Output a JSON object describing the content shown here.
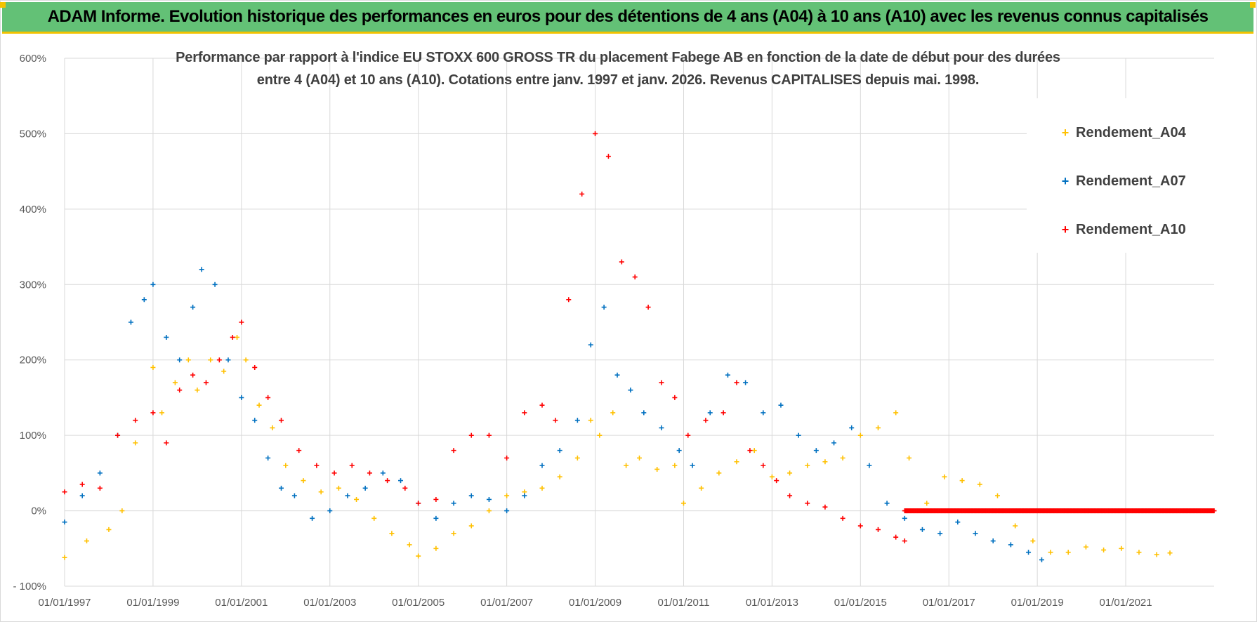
{
  "header": {
    "title": "ADAM Informe. Evolution historique des performances en euros pour des détentions de 4 ans (A04) à 10 ans (A10) avec les revenus connus capitalisés"
  },
  "colors": {
    "header_bg": "#63c176",
    "header_accent": "#f2c200",
    "A04": "#ffc000",
    "A07": "#0070c0",
    "A10": "#ff0000",
    "grid": "#d9d9d9",
    "axis_text": "#595959"
  },
  "chart_data": {
    "type": "scatter",
    "title_line1": "Performance par rapport à l'indice EU STOXX 600 GROSS TR  du placement Fabege AB en fonction de la date de début pour des durées",
    "title_line2": "entre 4 (A04) et 10 ans (A10).  Cotations entre janv. 1997 et janv. 2026. Revenus CAPITALISES depuis mai. 1998.",
    "xlabel": "",
    "ylabel": "",
    "xlim": [
      1997.0,
      2023.0
    ],
    "ylim": [
      -100,
      600
    ],
    "x_ticks": [
      1997,
      1999,
      2001,
      2003,
      2005,
      2007,
      2009,
      2011,
      2013,
      2015,
      2017,
      2019,
      2021
    ],
    "x_tick_labels": [
      "01/01/1997",
      "01/01/1999",
      "01/01/2001",
      "01/01/2003",
      "01/01/2005",
      "01/01/2007",
      "01/01/2009",
      "01/01/2011",
      "01/01/2013",
      "01/01/2015",
      "01/01/2017",
      "01/01/2019",
      "01/01/2021"
    ],
    "y_ticks": [
      -100,
      0,
      100,
      200,
      300,
      400,
      500,
      600
    ],
    "y_tick_labels": [
      "- 100%",
      "0%",
      "100%",
      "200%",
      "300%",
      "400%",
      "500%",
      "600%"
    ],
    "legend": [
      "Rendement_A04",
      "Rendement_A07",
      "Rendement_A10"
    ],
    "legend_position": "top-right",
    "series": [
      {
        "name": "Rendement_A04",
        "x": [
          1997.0,
          1997.5,
          1998.0,
          1998.3,
          1998.6,
          1999.0,
          1999.2,
          1999.5,
          1999.8,
          2000.0,
          2000.3,
          2000.6,
          2000.9,
          2001.1,
          2001.4,
          2001.7,
          2002.0,
          2002.4,
          2002.8,
          2003.2,
          2003.6,
          2004.0,
          2004.4,
          2004.8,
          2005.0,
          2005.4,
          2005.8,
          2006.2,
          2006.6,
          2007.0,
          2007.4,
          2007.8,
          2008.2,
          2008.6,
          2008.9,
          2009.1,
          2009.4,
          2009.7,
          2010.0,
          2010.4,
          2010.8,
          2011.0,
          2011.4,
          2011.8,
          2012.2,
          2012.6,
          2013.0,
          2013.4,
          2013.8,
          2014.2,
          2014.6,
          2015.0,
          2015.4,
          2015.8,
          2016.1,
          2016.5,
          2016.9,
          2017.3,
          2017.7,
          2018.1,
          2018.5,
          2018.9,
          2019.3,
          2019.7,
          2020.1,
          2020.5,
          2020.9,
          2021.3,
          2021.7,
          2022.0
        ],
        "values": [
          -62,
          -40,
          -25,
          0,
          90,
          190,
          130,
          170,
          200,
          160,
          200,
          185,
          230,
          200,
          140,
          110,
          60,
          40,
          25,
          30,
          15,
          -10,
          -30,
          -45,
          -60,
          -50,
          -30,
          -20,
          0,
          20,
          25,
          30,
          45,
          70,
          120,
          100,
          130,
          60,
          70,
          55,
          60,
          10,
          30,
          50,
          65,
          80,
          45,
          50,
          60,
          65,
          70,
          100,
          110,
          130,
          70,
          10,
          45,
          40,
          35,
          20,
          -20,
          -40,
          -55,
          -55,
          -48,
          -52,
          -50,
          -55,
          -58,
          -56
        ]
      },
      {
        "name": "Rendement_A07",
        "x": [
          1997.0,
          1997.4,
          1997.8,
          1998.2,
          1998.5,
          1998.8,
          1999.0,
          1999.3,
          1999.6,
          1999.9,
          2000.1,
          2000.4,
          2000.7,
          2001.0,
          2001.3,
          2001.6,
          2001.9,
          2002.2,
          2002.6,
          2003.0,
          2003.4,
          2003.8,
          2004.2,
          2004.6,
          2005.0,
          2005.4,
          2005.8,
          2006.2,
          2006.6,
          2007.0,
          2007.4,
          2007.8,
          2008.2,
          2008.6,
          2008.9,
          2009.2,
          2009.5,
          2009.8,
          2010.1,
          2010.5,
          2010.9,
          2011.2,
          2011.6,
          2012.0,
          2012.4,
          2012.8,
          2013.2,
          2013.6,
          2014.0,
          2014.4,
          2014.8,
          2015.2,
          2015.6,
          2016.0,
          2016.4,
          2016.8,
          2017.2,
          2017.6,
          2018.0,
          2018.4,
          2018.8,
          2019.1
        ],
        "values": [
          -15,
          20,
          50,
          100,
          250,
          280,
          300,
          230,
          200,
          270,
          320,
          300,
          200,
          150,
          120,
          70,
          30,
          20,
          -10,
          0,
          20,
          30,
          50,
          40,
          10,
          -10,
          10,
          20,
          15,
          0,
          20,
          60,
          80,
          120,
          220,
          270,
          180,
          160,
          130,
          110,
          80,
          60,
          130,
          180,
          170,
          130,
          140,
          100,
          80,
          90,
          110,
          60,
          10,
          -10,
          -25,
          -30,
          -15,
          -30,
          -40,
          -45,
          -55,
          -65
        ]
      },
      {
        "name": "Rendement_A10",
        "x": [
          1997.0,
          1997.4,
          1997.8,
          1998.2,
          1998.6,
          1999.0,
          1999.3,
          1999.6,
          1999.9,
          2000.2,
          2000.5,
          2000.8,
          2001.0,
          2001.3,
          2001.6,
          2001.9,
          2002.3,
          2002.7,
          2003.1,
          2003.5,
          2003.9,
          2004.3,
          2004.7,
          2005.0,
          2005.4,
          2005.8,
          2006.2,
          2006.6,
          2007.0,
          2007.4,
          2007.8,
          2008.1,
          2008.4,
          2008.7,
          2009.0,
          2009.3,
          2009.6,
          2009.9,
          2010.2,
          2010.5,
          2010.8,
          2011.1,
          2011.5,
          2011.9,
          2012.2,
          2012.5,
          2012.8,
          2013.1,
          2013.4,
          2013.8,
          2014.2,
          2014.6,
          2015.0,
          2015.4,
          2015.8,
          2016.0
        ],
        "values": [
          25,
          35,
          30,
          100,
          120,
          130,
          90,
          160,
          180,
          170,
          200,
          230,
          250,
          190,
          150,
          120,
          80,
          60,
          50,
          60,
          50,
          40,
          30,
          10,
          15,
          80,
          100,
          100,
          70,
          130,
          140,
          120,
          280,
          420,
          500,
          470,
          330,
          310,
          270,
          170,
          150,
          100,
          120,
          130,
          170,
          80,
          60,
          40,
          20,
          10,
          5,
          -10,
          -20,
          -25,
          -35,
          -40
        ]
      },
      {
        "name": "Rendement_A10 (0% flat)",
        "x_range": [
          2016.0,
          2023.0
        ],
        "value": 0
      }
    ]
  }
}
